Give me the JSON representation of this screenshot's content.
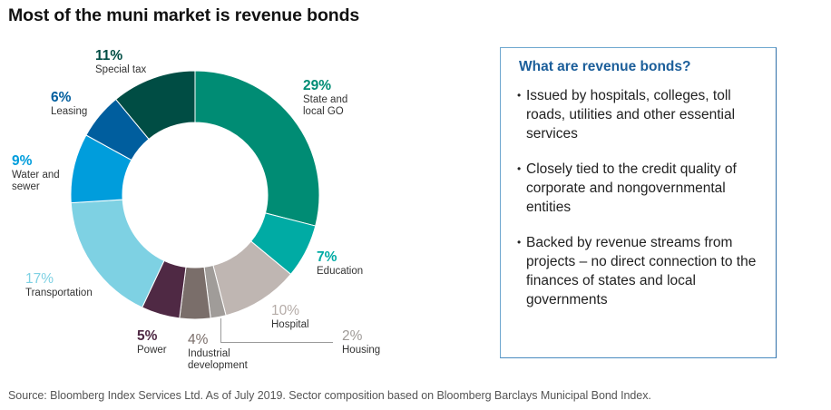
{
  "title": "Most of the muni market is revenue bonds",
  "chart_data": {
    "type": "pie",
    "variant": "donut",
    "title": "Most of the muni market is revenue bonds",
    "start": "top",
    "direction": "clockwise",
    "unit": "%",
    "slices": [
      {
        "label": "State and local GO",
        "label_lines": [
          "State and",
          "local GO"
        ],
        "value": 29,
        "display": "29%",
        "color": "#008c74",
        "label_color": "#008c74"
      },
      {
        "label": "Education",
        "label_lines": [
          "Education"
        ],
        "value": 7,
        "display": "7%",
        "color": "#00aba4",
        "label_color": "#00aba4"
      },
      {
        "label": "Hospital",
        "label_lines": [
          "Hospital"
        ],
        "value": 10,
        "display": "10%",
        "color": "#bfb6b2",
        "label_color": "#b5aca8"
      },
      {
        "label": "Housing",
        "label_lines": [
          "Housing"
        ],
        "value": 2,
        "display": "2%",
        "color": "#a09c99",
        "label_color": "#9e9a97"
      },
      {
        "label": "Industrial development",
        "label_lines": [
          "Industrial",
          "development"
        ],
        "value": 4,
        "display": "4%",
        "color": "#7a6e6a",
        "label_color": "#7a6e6a"
      },
      {
        "label": "Power",
        "label_lines": [
          "Power"
        ],
        "value": 5,
        "display": "5%",
        "color": "#4f2944",
        "label_color": "#4f2944"
      },
      {
        "label": "Transportation",
        "label_lines": [
          "Transportation"
        ],
        "value": 17,
        "display": "17%",
        "color": "#7ed1e3",
        "label_color": "#7ed1e3"
      },
      {
        "label": "Water and sewer",
        "label_lines": [
          "Water and",
          "sewer"
        ],
        "value": 9,
        "display": "9%",
        "color": "#009ddc",
        "label_color": "#009ddc"
      },
      {
        "label": "Leasing",
        "label_lines": [
          "Leasing"
        ],
        "value": 6,
        "display": "6%",
        "color": "#005e9e",
        "label_color": "#005e9e"
      },
      {
        "label": "Special tax",
        "label_lines": [
          "Special tax"
        ],
        "value": 11,
        "display": "11%",
        "color": "#004d44",
        "label_color": "#004d44"
      }
    ]
  },
  "infobox": {
    "title": "What are revenue bonds?",
    "bullet_char": "•",
    "items": [
      "Issued by hospitals, colleges, toll roads, utilities and other essential services",
      "Closely tied to the credit quality of corporate and nongovernmental entities",
      "Backed by revenue streams from projects – no direct connection to the finances of states and local governments"
    ]
  },
  "source": "Source: Bloomberg Index Services Ltd. As of July 2019. Sector composition based on Bloomberg Barclays Municipal Bond Index."
}
